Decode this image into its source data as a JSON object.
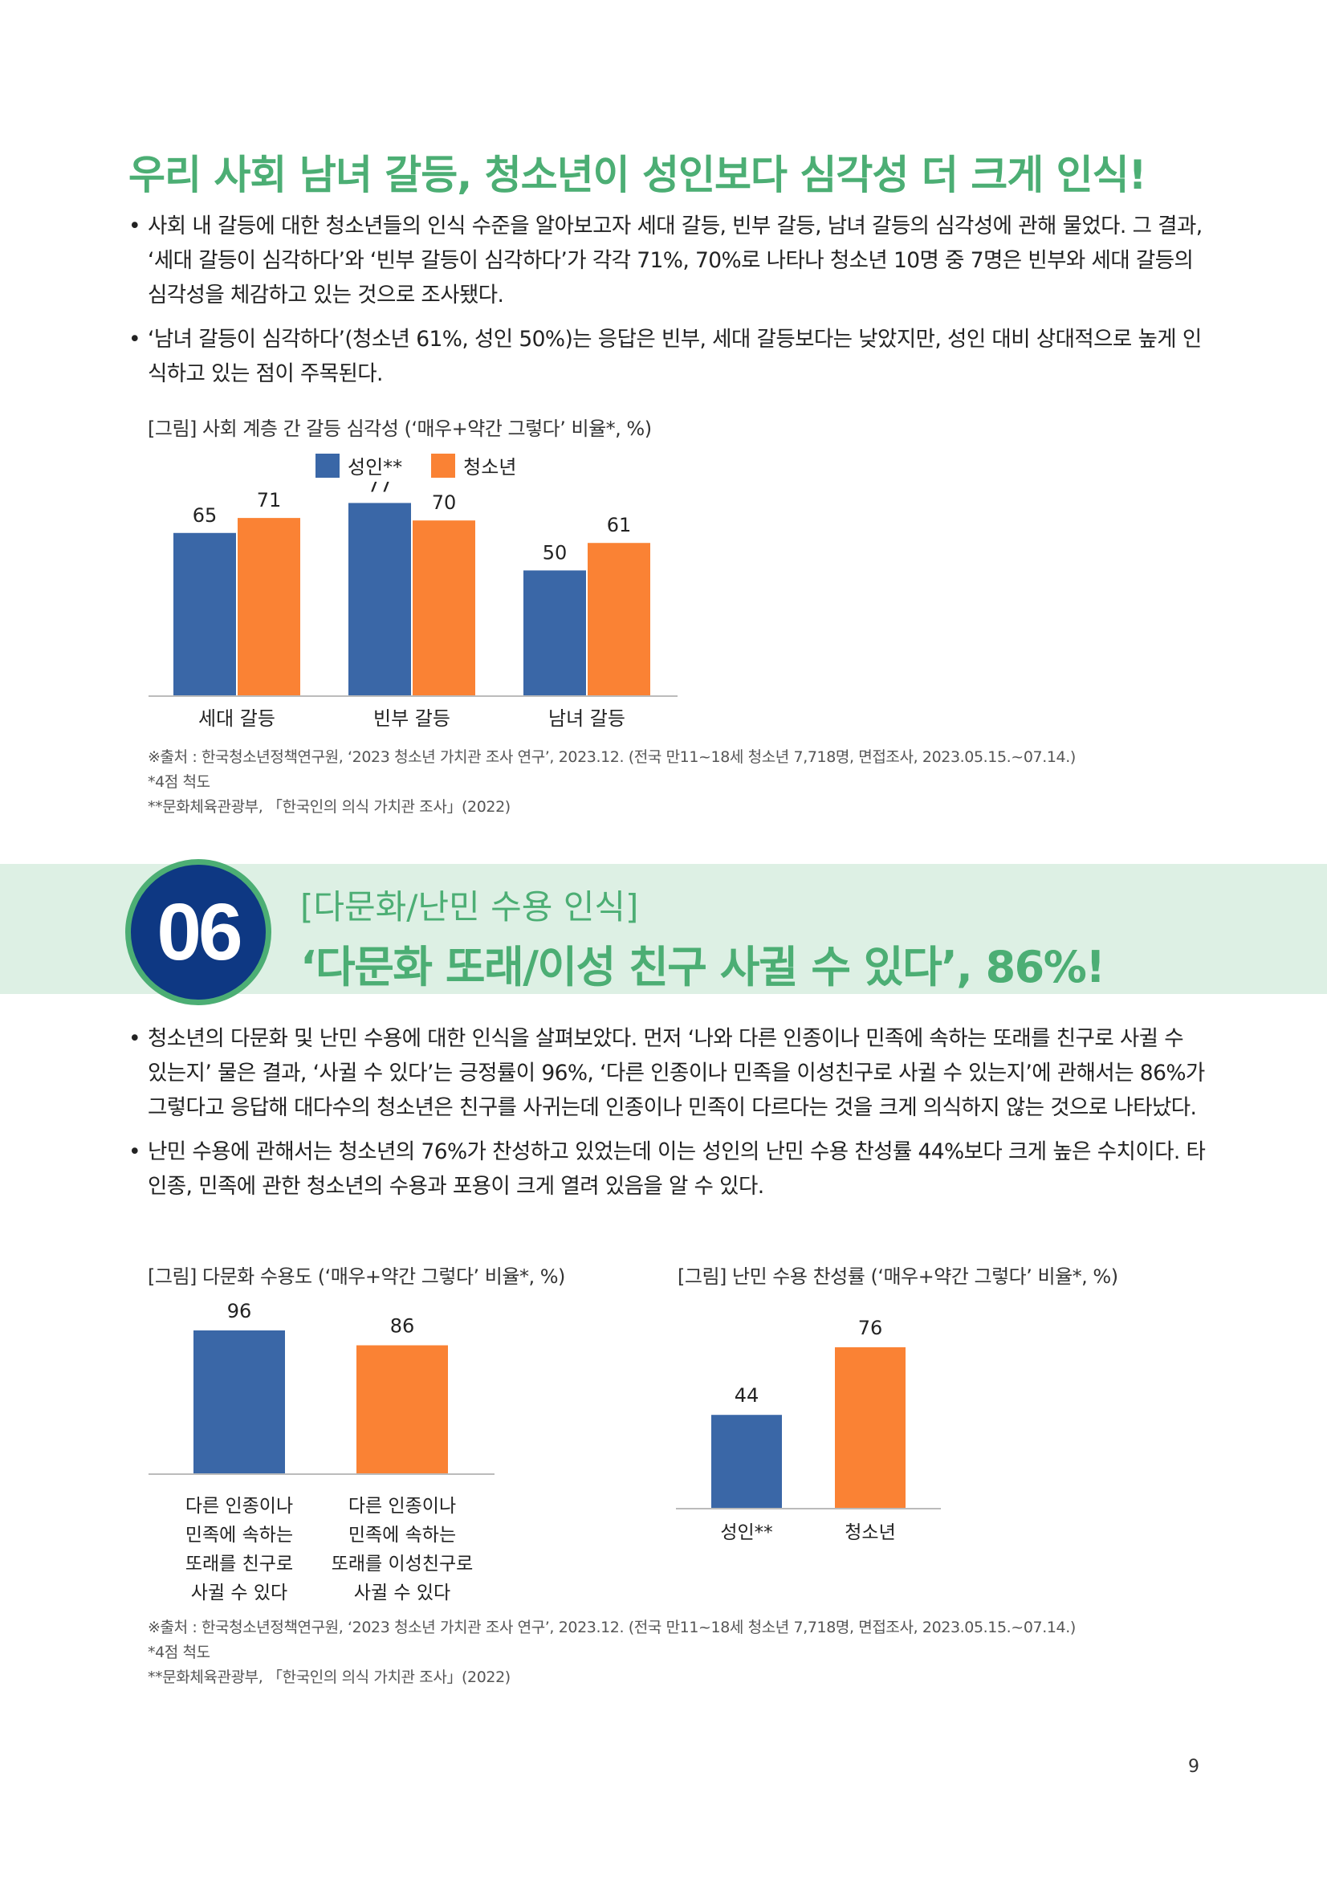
{
  "section1": {
    "headline": "우리 사회 남녀 갈등, 청소년이 성인보다 심각성 더 크게 인식!",
    "bullets": [
      "사회 내 갈등에 대한 청소년들의 인식 수준을 알아보고자 세대 갈등, 빈부 갈등, 남녀 갈등의 심각성에 관해 물었다. 그 결과, ‘세대 갈등이 심각하다’와 ‘빈부 갈등이 심각하다’가 각각 71%, 70%로 나타나 청소년 10명 중 7명은 빈부와 세대 갈등의 심각성을 체감하고 있는 것으로 조사됐다.",
      "‘남녀 갈등이 심각하다’(청소년 61%, 성인 50%)는 응답은 빈부, 세대 갈등보다는 낮았지만, 성인 대비 상대적으로 높게 인식하고 있는 점이 주목된다."
    ],
    "figure_title": "[그림] 사회 계층 간 갈등 심각성 (‘매우+약간 그렇다’ 비율*, %)",
    "footnotes": [
      "※출처 : 한국청소년정책연구원, ‘2023 청소년 가치관 조사 연구’, 2023.12. (전국 만11~18세 청소년 7,718명, 면접조사, 2023.05.15.~07.14.)",
      "*4점 척도",
      "**문화체육관광부, 「한국인의 의식 가치관 조사」(2022)"
    ]
  },
  "section2": {
    "number": "06",
    "subtitle": "[다문화/난민 수용 인식]",
    "title": "‘다문화 또래/이성 친구 사귈 수 있다’, 86%!",
    "bullets": [
      "청소년의 다문화 및 난민 수용에 대한 인식을 살펴보았다. 먼저 ‘나와 다른 인종이나 민족에 속하는 또래를 친구로 사귈 수 있는지’ 물은 결과, ‘사귈 수 있다’는 긍정률이 96%, ‘다른 인종이나 민족을 이성친구로 사귈 수 있는지’에 관해서는 86%가 그렇다고 응답해 대다수의 청소년은 친구를 사귀는데 인종이나 민족이 다르다는 것을 크게 의식하지 않는 것으로 나타났다.",
      "난민 수용에 관해서는 청소년의 76%가 찬성하고 있었는데 이는 성인의 난민 수용 찬성률 44%보다 크게 높은 수치이다. 타 인종, 민족에 관한 청소년의 수용과 포용이 크게 열려 있음을 알 수 있다."
    ],
    "figure_title_left": "[그림] 다문화 수용도 (‘매우+약간 그렇다’ 비율*, %)",
    "figure_title_right": "[그림] 난민 수용 찬성률 (‘매우+약간 그렇다’ 비율*, %)",
    "footnotes": [
      "※출처 : 한국청소년정책연구원, ‘2023 청소년 가치관 조사 연구’, 2023.12. (전국 만11~18세 청소년 7,718명, 면접조사, 2023.05.15.~07.14.)",
      "*4점 척도",
      "**문화체육관광부, 「한국인의 의식 가치관 조사」(2022)"
    ]
  },
  "page_number": "9",
  "colors": {
    "adult": "#3A67A7",
    "youth": "#FA8234",
    "green": "#4CAE74",
    "badge": "#0E3883"
  },
  "chart_data": [
    {
      "type": "bar",
      "categories": [
        "세대 갈등",
        "빈부 갈등",
        "남녀 갈등"
      ],
      "series": [
        {
          "name": "성인**",
          "values": [
            65,
            77,
            50
          ]
        },
        {
          "name": "청소년",
          "values": [
            71,
            70,
            61
          ]
        }
      ],
      "ylim": [
        0,
        90
      ],
      "legend": "top",
      "grid": false
    },
    {
      "type": "bar",
      "categories": [
        [
          "다른 인종이나",
          "민족에 속하는",
          "또래를 친구로",
          "사귈 수 있다"
        ],
        [
          "다른 인종이나",
          "민족에 속하는",
          "또래를 이성친구로",
          "사귈 수 있다"
        ]
      ],
      "values": [
        96,
        86
      ],
      "ylim": [
        0,
        100
      ],
      "grid": false
    },
    {
      "type": "bar",
      "categories": [
        "성인**",
        "청소년"
      ],
      "values": [
        44,
        76
      ],
      "ylim": [
        0,
        100
      ],
      "grid": false
    }
  ]
}
